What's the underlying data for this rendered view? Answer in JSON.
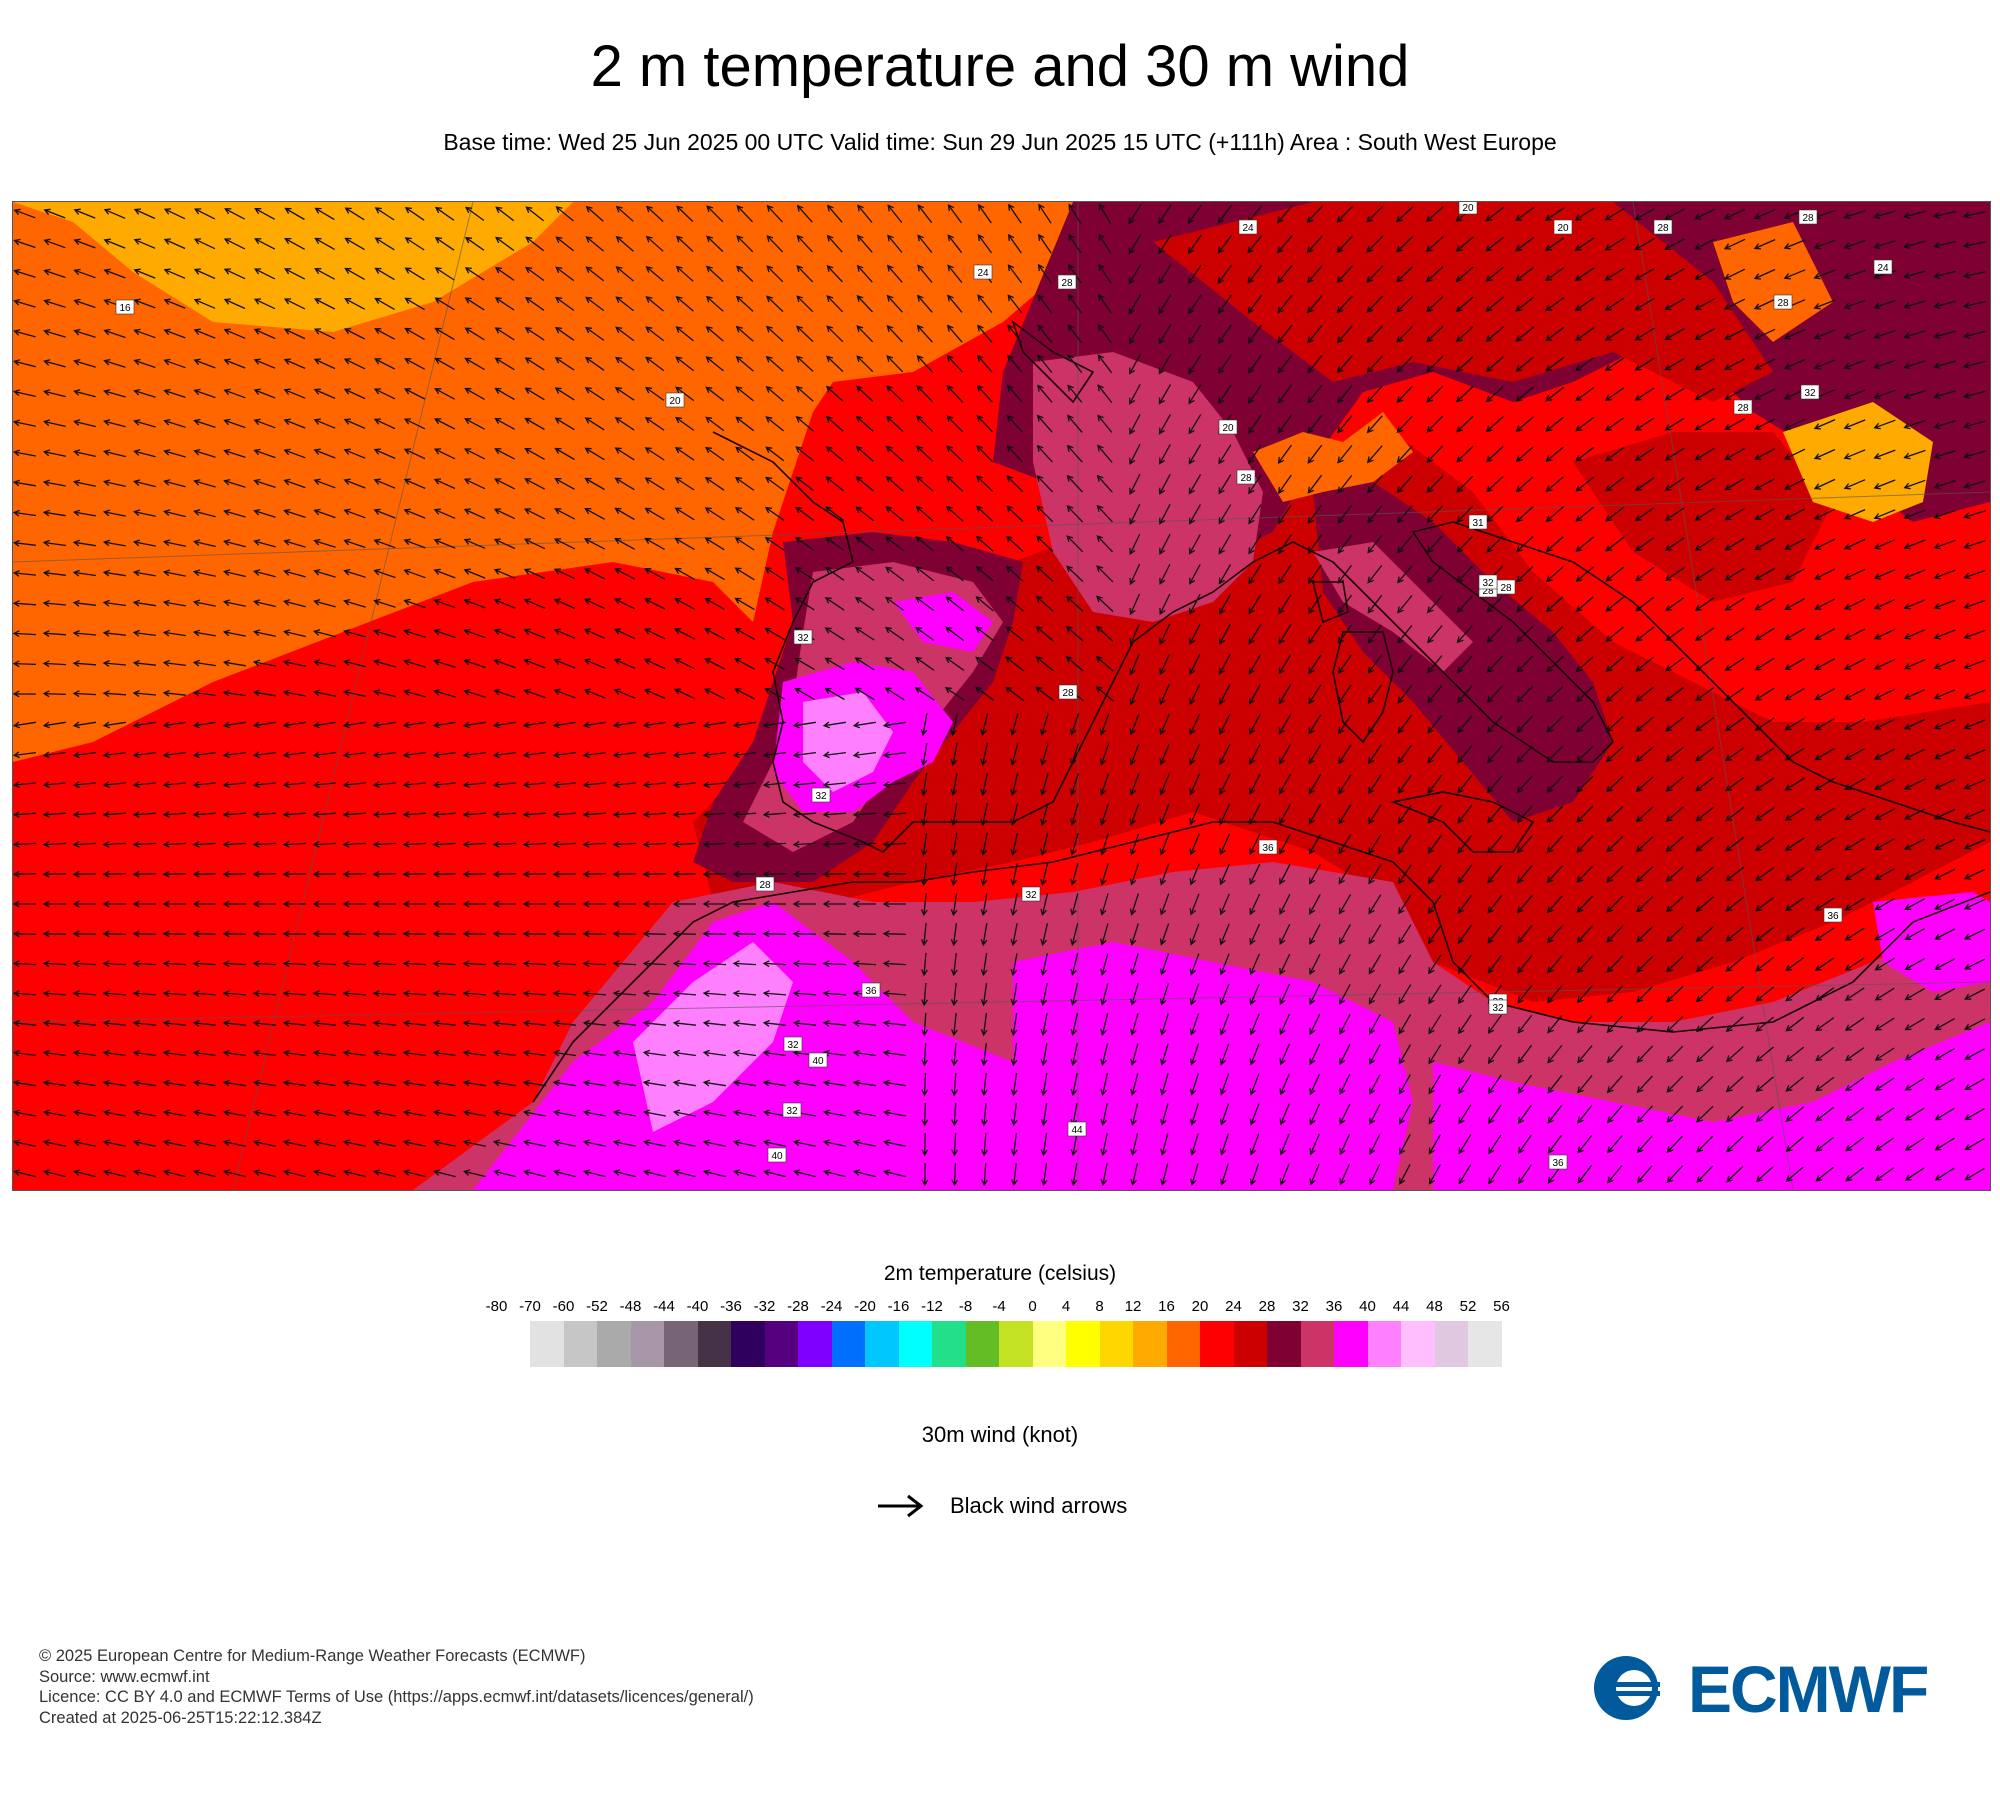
{
  "title": "2 m temperature and 30 m wind",
  "subtitle": "Base time: Wed 25 Jun 2025 00 UTC Valid time: Sun 29 Jun 2025 15 UTC (+111h) Area : South West Europe",
  "map": {
    "temperature_labels": [
      "16",
      "20",
      "24",
      "28",
      "24",
      "20",
      "28",
      "28",
      "24",
      "28",
      "28",
      "32",
      "20",
      "28",
      "31",
      "28",
      "32",
      "28",
      "32",
      "28",
      "32",
      "36",
      "36",
      "32",
      "40",
      "32",
      "40",
      "44",
      "32",
      "36",
      "20",
      "28",
      "32",
      "36",
      "32"
    ]
  },
  "legend": {
    "temperature": {
      "title": "2m temperature (celsius)",
      "ticks": [
        "-80",
        "-70",
        "-60",
        "-52",
        "-48",
        "-44",
        "-40",
        "-36",
        "-32",
        "-28",
        "-24",
        "-20",
        "-16",
        "-12",
        "-8",
        "-4",
        "0",
        "4",
        "8",
        "12",
        "16",
        "20",
        "24",
        "28",
        "32",
        "36",
        "40",
        "44",
        "48",
        "52",
        "56"
      ],
      "colors": [
        "#e2e2e2",
        "#c6c6c6",
        "#aaaaaa",
        "#a897a8",
        "#776477",
        "#463246",
        "#30005e",
        "#54007f",
        "#7f00ff",
        "#006ffe",
        "#00c8fe",
        "#00ffff",
        "#22e08a",
        "#64bd24",
        "#c3e223",
        "#ffff80",
        "#ffff00",
        "#ffd700",
        "#ffaa00",
        "#ff6600",
        "#ff0000",
        "#cc0000",
        "#7f0033",
        "#cc3366",
        "#ff00ff",
        "#ff80ff",
        "#ffbfff",
        "#e0c9e0",
        "#e6e6e6"
      ]
    },
    "wind": {
      "title": "30m wind (knot)",
      "item_label": "Black wind arrows"
    }
  },
  "footer": {
    "copyright": "© 2025 European Centre for Medium-Range Weather Forecasts (ECMWF)",
    "source": "Source: www.ecmwf.int",
    "licence": "Licence: CC BY 4.0 and ECMWF Terms of Use (https://apps.ecmwf.int/datasets/licences/general/)",
    "created": "Created at 2025-06-25T15:22:12.384Z"
  },
  "logo_text": "ECMWF",
  "colors": {
    "brand_blue": "#005a9c"
  }
}
